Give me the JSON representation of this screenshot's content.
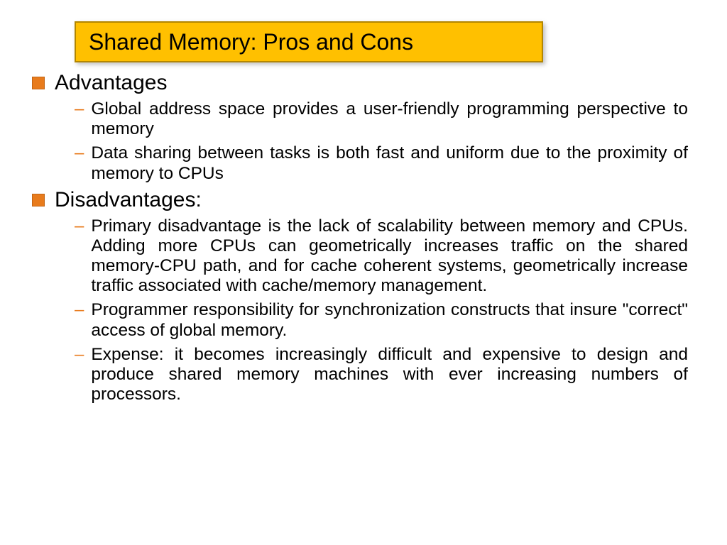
{
  "title": "Shared Memory: Pros and Cons",
  "sections": [
    {
      "heading": "Advantages",
      "items": [
        "Global address space provides a user-friendly programming perspective to memory",
        "Data sharing between tasks is both fast and uniform due to the proximity of memory to CPUs"
      ]
    },
    {
      "heading": "Disadvantages:",
      "items": [
        "Primary disadvantage is the lack of scalability between memory and CPUs. Adding more CPUs can geometrically increases traffic on the shared memory-CPU path, and for cache coherent systems, geometrically increase traffic associated with cache/memory management.",
        "Programmer responsibility for synchronization constructs that insure \"correct\" access of global memory.",
        "Expense: it becomes increasingly difficult and expensive to design and produce shared memory machines with ever increasing numbers of processors."
      ]
    }
  ],
  "colors": {
    "title_bg": "#ffc000",
    "title_border": "#b38600",
    "bullet": "#e87b1c",
    "text": "#000000",
    "background": "#ffffff"
  },
  "fonts": {
    "title_size": 32,
    "heading_size": 30,
    "body_size": 24.5
  }
}
